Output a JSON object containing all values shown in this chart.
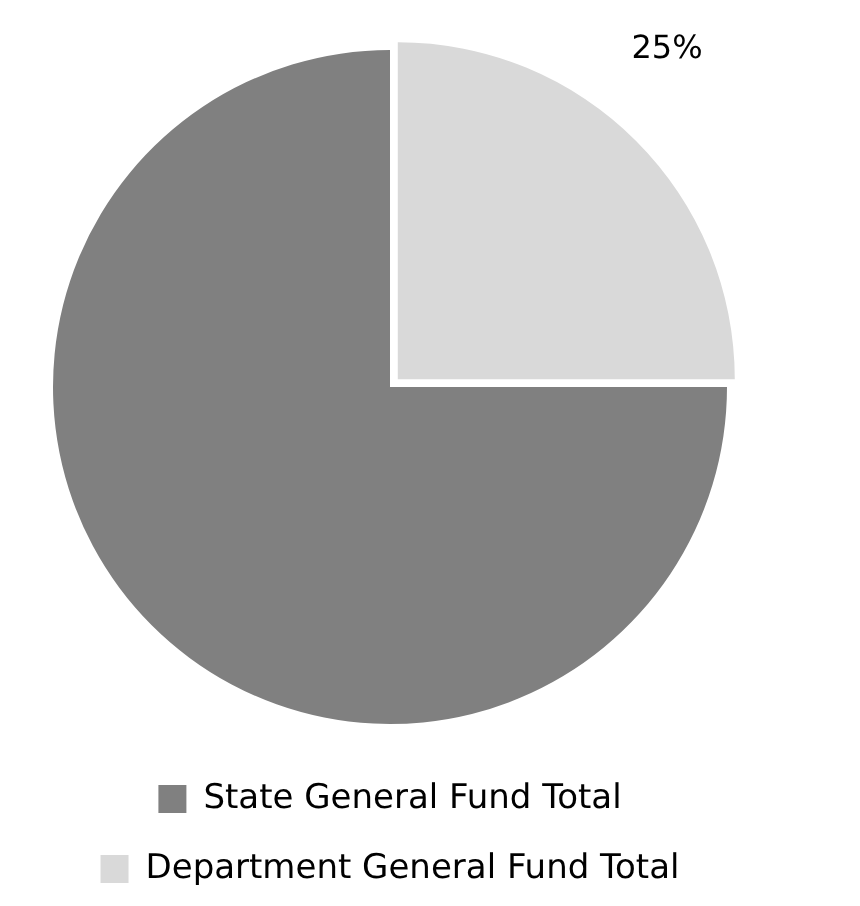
{
  "chart_data": {
    "type": "pie",
    "categories": [
      "State General Fund Total",
      "Department General Fund Total"
    ],
    "values": [
      75,
      25
    ],
    "colors": [
      "#808080",
      "#d9d9d9"
    ],
    "value_labels": [
      null,
      "25%"
    ],
    "legend": "bottom"
  }
}
